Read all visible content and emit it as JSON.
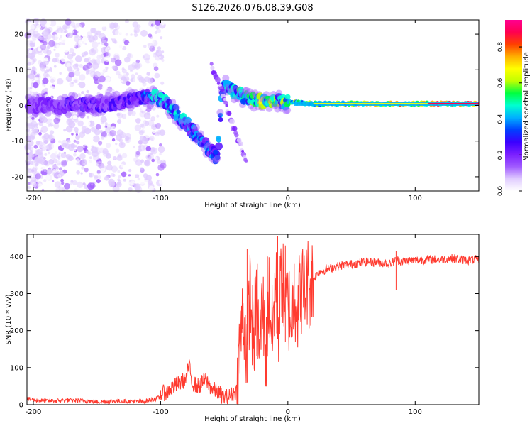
{
  "title": "S126.2026.076.08.39.G08",
  "chart_data": [
    {
      "type": "heatmap",
      "title": "S126.2026.076.08.39.G08",
      "xlabel": "Height of straight line (km)",
      "ylabel": "Frequency (Hz)",
      "xlim": [
        -205,
        150
      ],
      "ylim": [
        -24,
        24
      ],
      "xticks": [
        -200,
        -100,
        0,
        100
      ],
      "yticks": [
        -20,
        -10,
        0,
        10,
        20
      ],
      "colorbar": {
        "label": "Normalized spectral amplitude",
        "range": [
          0.0,
          0.95
        ],
        "ticks": [
          "0.0",
          "0.2",
          "0.4",
          "0.6",
          "0.8"
        ],
        "tick_values": [
          0.0,
          0.2,
          0.4,
          0.6,
          0.8
        ],
        "colormap": [
          "#ffffff",
          "#e0ccff",
          "#a05aff",
          "#7a1eff",
          "#3a00ff",
          "#0040ff",
          "#00b0ff",
          "#00ffd0",
          "#00ff40",
          "#c0ff00",
          "#ffff00",
          "#ffb000",
          "#ff4000",
          "#ff0050",
          "#ff0090"
        ]
      },
      "ridge": [
        [
          -205,
          0.0
        ],
        [
          -190,
          0.3
        ],
        [
          -180,
          -0.5
        ],
        [
          -170,
          0.5
        ],
        [
          -160,
          0.2
        ],
        [
          -150,
          0.0
        ],
        [
          -140,
          0.5
        ],
        [
          -130,
          1.0
        ],
        [
          -120,
          1.5
        ],
        [
          -110,
          2.5
        ],
        [
          -100,
          2.0
        ],
        [
          -95,
          0.5
        ],
        [
          -90,
          -1.5
        ],
        [
          -85,
          -3.5
        ],
        [
          -80,
          -5.0
        ],
        [
          -75,
          -7.0
        ],
        [
          -70,
          -9.5
        ],
        [
          -65,
          -11.0
        ],
        [
          -60,
          -12.5
        ],
        [
          -55,
          -15.0
        ],
        [
          -52,
          4.0
        ],
        [
          -48,
          5.5
        ],
        [
          -44,
          4.5
        ],
        [
          -40,
          3.5
        ],
        [
          -35,
          2.5
        ],
        [
          -30,
          2.0
        ],
        [
          -25,
          1.5
        ],
        [
          -20,
          1.0
        ],
        [
          -10,
          1.0
        ],
        [
          0,
          1.0
        ],
        [
          20,
          0.5
        ],
        [
          50,
          0.5
        ],
        [
          80,
          0.5
        ],
        [
          110,
          0.5
        ],
        [
          150,
          0.5
        ]
      ],
      "secondary_ridge": [
        [
          -60,
          11.0
        ],
        [
          -55,
          7.0
        ],
        [
          -50,
          2.0
        ],
        [
          -45,
          -4.0
        ],
        [
          -40,
          -9.0
        ],
        [
          -35,
          -13.0
        ],
        [
          -32,
          -16.0
        ]
      ],
      "ridge_amplitude": [
        [
          -205,
          0.2
        ],
        [
          -120,
          0.25
        ],
        [
          -100,
          0.45
        ],
        [
          -60,
          0.35
        ],
        [
          -40,
          0.45
        ],
        [
          -20,
          0.6
        ],
        [
          0,
          0.5
        ],
        [
          20,
          0.55
        ],
        [
          60,
          0.65
        ],
        [
          120,
          0.8
        ],
        [
          150,
          0.85
        ]
      ]
    },
    {
      "type": "line",
      "xlabel": "Height of straight line (km)",
      "ylabel": "SNR (10 * v/v)",
      "xlim": [
        -205,
        150
      ],
      "ylim": [
        0,
        460
      ],
      "xticks": [
        -200,
        -100,
        0,
        100
      ],
      "yticks": [
        0,
        100,
        200,
        300,
        400
      ],
      "series": [
        {
          "name": "SNR",
          "color": "#ff3b30",
          "x": [
            -205,
            -190,
            -170,
            -150,
            -130,
            -115,
            -105,
            -100,
            -95,
            -90,
            -85,
            -80,
            -78,
            -75,
            -70,
            -65,
            -60,
            -55,
            -50,
            -45,
            -40,
            -38,
            -35,
            -32,
            -30,
            -27,
            -25,
            -22,
            -20,
            -17,
            -15,
            -12,
            -10,
            -7,
            -5,
            -2,
            0,
            3,
            5,
            8,
            10,
            13,
            15,
            18,
            20,
            25,
            30,
            35,
            40,
            50,
            60,
            70,
            80,
            85,
            90,
            100,
            110,
            120,
            130,
            140,
            150
          ],
          "y": [
            15,
            10,
            12,
            8,
            10,
            8,
            15,
            20,
            25,
            40,
            50,
            60,
            100,
            50,
            40,
            60,
            35,
            25,
            10,
            15,
            30,
            150,
            250,
            140,
            310,
            170,
            260,
            150,
            280,
            120,
            300,
            180,
            330,
            220,
            360,
            250,
            270,
            240,
            310,
            260,
            320,
            300,
            330,
            330,
            340,
            360,
            365,
            370,
            375,
            380,
            385,
            385,
            380,
            390,
            388,
            390,
            392,
            392,
            395,
            390,
            392
          ]
        }
      ],
      "spikes": [
        [
          -32,
          420
        ],
        [
          -24,
          380
        ],
        [
          -16,
          400
        ],
        [
          -8,
          455
        ],
        [
          -2,
          430
        ],
        [
          5,
          380
        ],
        [
          85,
          415
        ]
      ]
    }
  ]
}
